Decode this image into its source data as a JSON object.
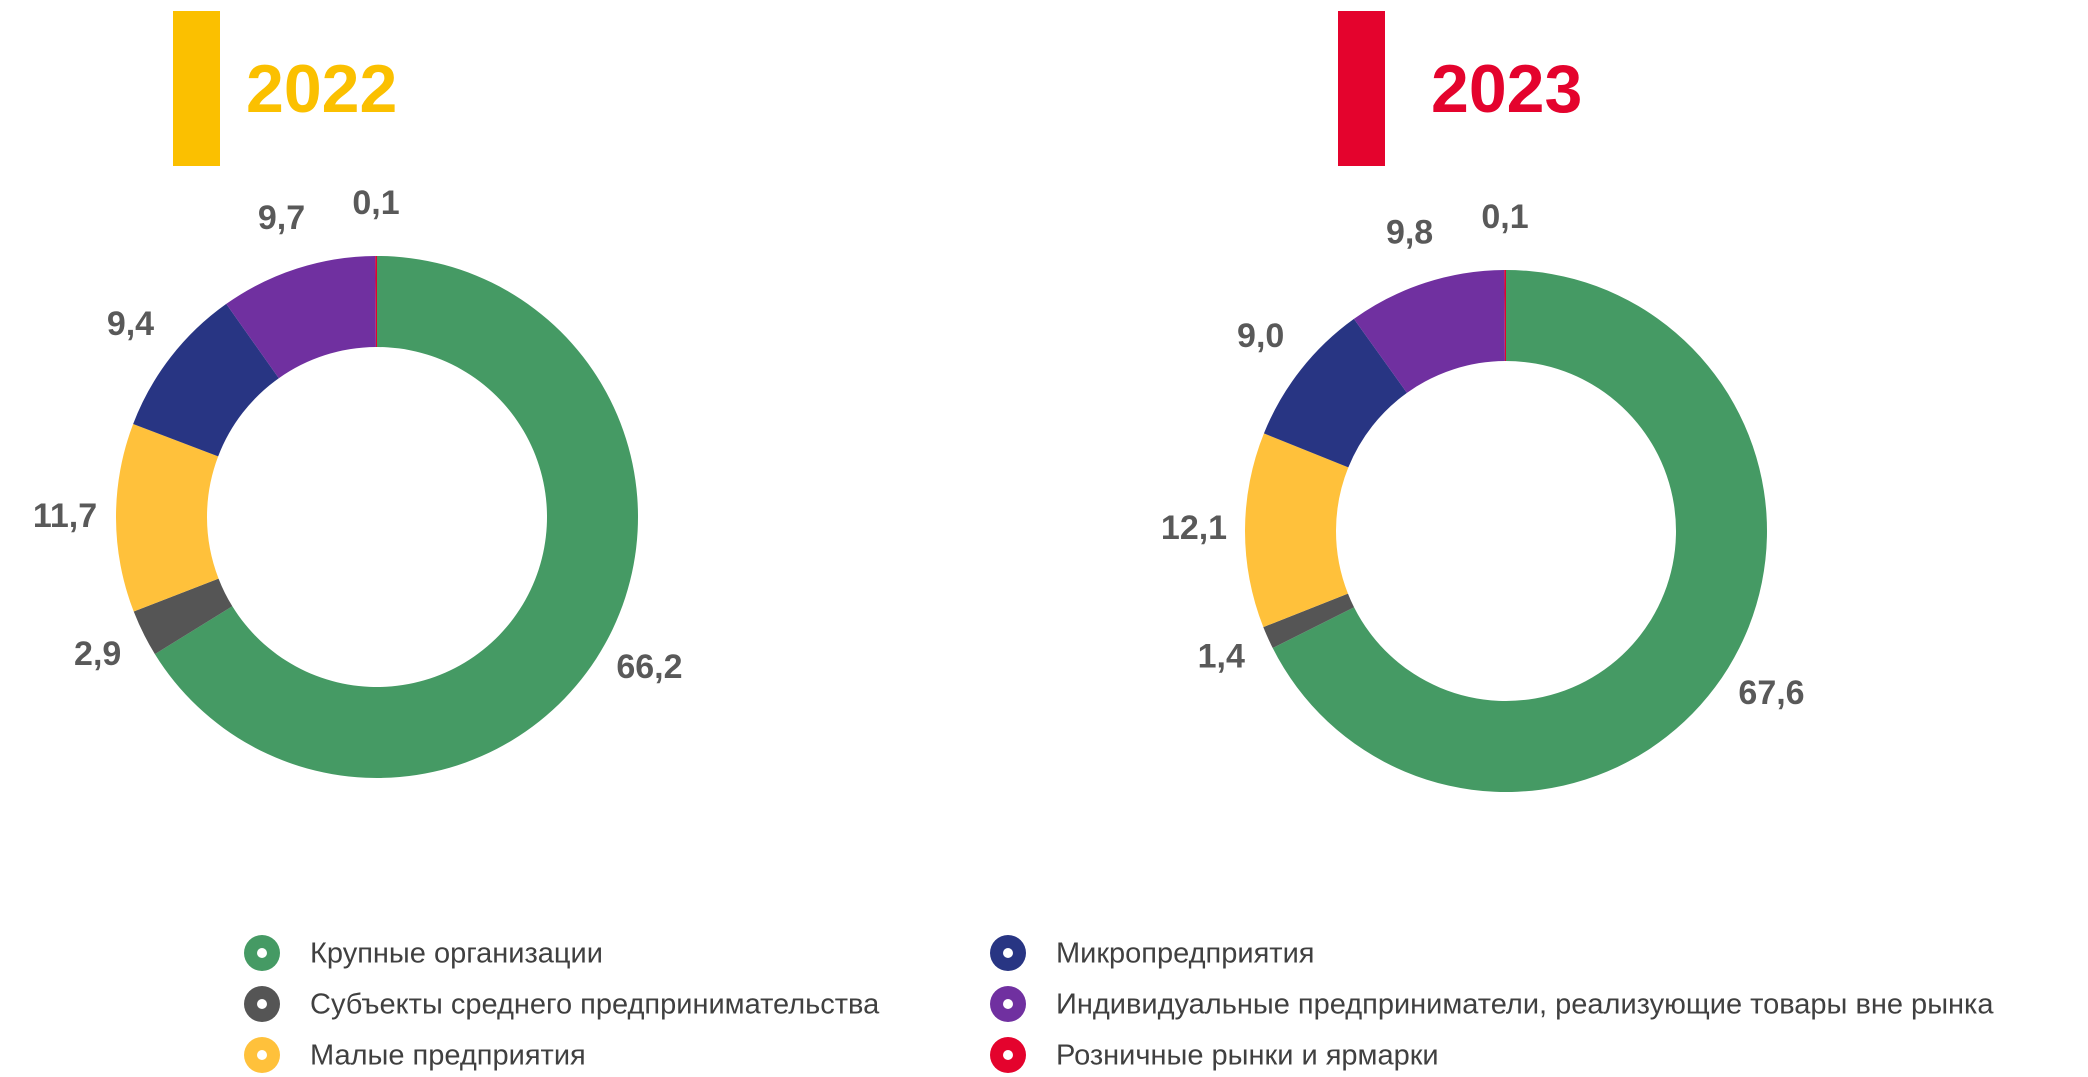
{
  "chart_data": [
    {
      "type": "pie",
      "title": "2022",
      "title_color": "#fbc000",
      "categories": [
        "Крупные организации",
        "Субъекты среднего предпринимательства",
        "Малые предприятия",
        "Микропредприятия",
        "Индивидуальные предприниматели, реализующие товары вне рынка",
        "Розничные рынки и ярмарки"
      ],
      "values": [
        66.2,
        2.9,
        11.7,
        9.4,
        9.7,
        0.1
      ],
      "value_labels": [
        "66,2",
        "2,9",
        "11,7",
        "9,4",
        "9,7",
        "0,1"
      ],
      "colors": [
        "#459a64",
        "#555555",
        "#ffc13b",
        "#283583",
        "#7030a0",
        "#e4032d"
      ]
    },
    {
      "type": "pie",
      "title": "2023",
      "title_color": "#e4032d",
      "categories": [
        "Крупные организации",
        "Субъекты среднего предпринимательства",
        "Малые предприятия",
        "Микропредприятия",
        "Индивидуальные предприниматели, реализующие товары вне рынка",
        "Розничные рынки и ярмарки"
      ],
      "values": [
        67.6,
        1.4,
        12.1,
        9.0,
        9.8,
        0.1
      ],
      "value_labels": [
        "67,6",
        "1,4",
        "12,1",
        "9,0",
        "9,8",
        "0,1"
      ],
      "colors": [
        "#459a64",
        "#555555",
        "#ffc13b",
        "#283583",
        "#7030a0",
        "#e4032d"
      ]
    }
  ]
}
